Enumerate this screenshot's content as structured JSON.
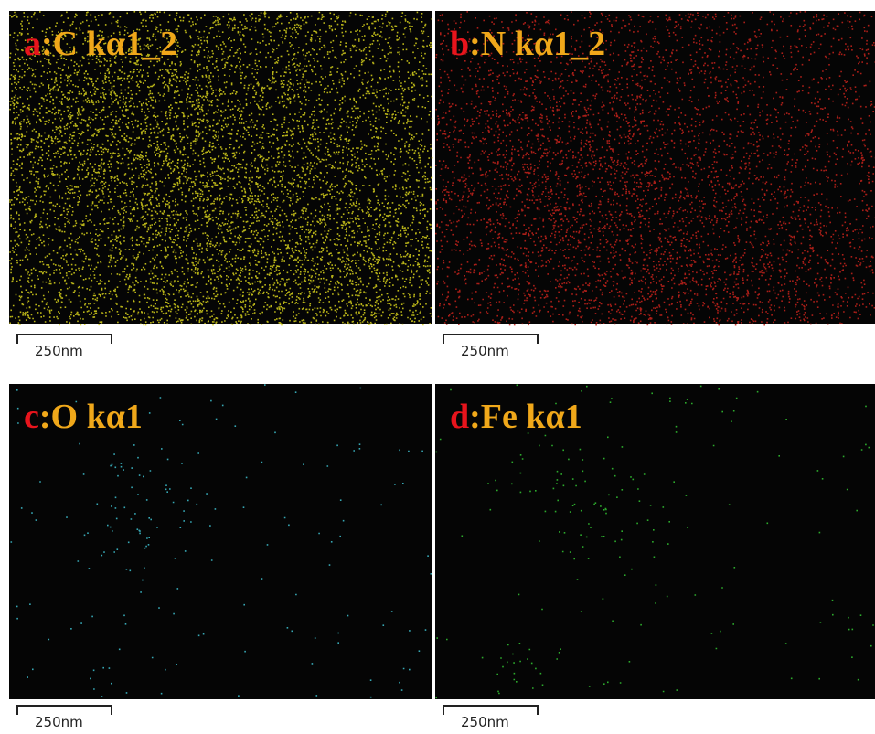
{
  "panels": [
    {
      "letter": "a",
      "label": ":C kα1_2",
      "scale_bar": "250nm",
      "color": "#d8d21c"
    },
    {
      "letter": "b",
      "label": ":N kα1_2",
      "scale_bar": "250nm",
      "color": "#c8231c"
    },
    {
      "letter": "c",
      "label": ":O kα1",
      "scale_bar": "250nm",
      "color": "#3fc4d4"
    },
    {
      "letter": "d",
      "label": ":Fe kα1",
      "scale_bar": "250nm",
      "color": "#34c834"
    }
  ]
}
